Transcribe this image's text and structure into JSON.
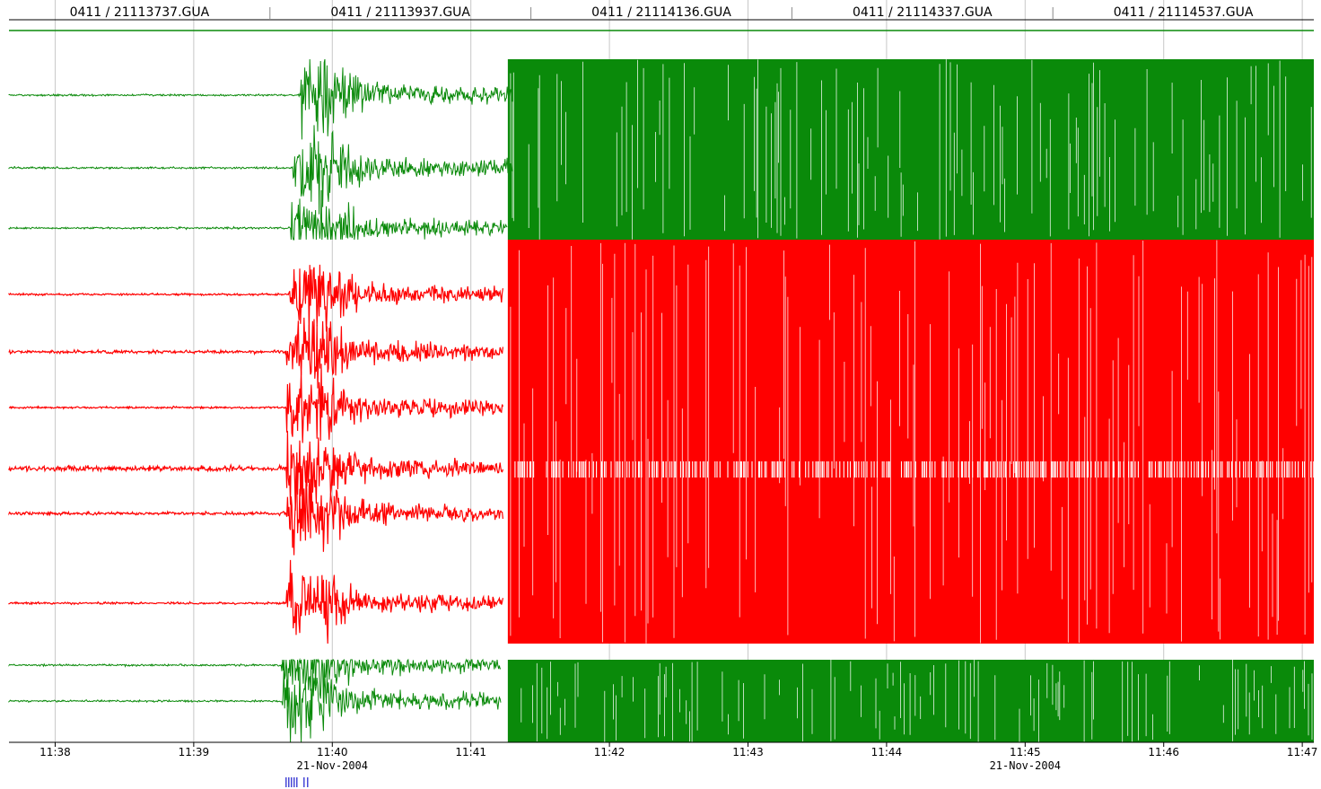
{
  "chart_data": {
    "type": "line",
    "title": "",
    "xlabel": "",
    "ylabel": "",
    "file_labels": [
      "0411 / 21113737.GUA",
      "0411 / 21113937.GUA",
      "0411 / 21114136.GUA",
      "0411 / 21114337.GUA",
      "0411 / 21114537.GUA"
    ],
    "x_ticks": [
      "11:38",
      "11:39",
      "11:40",
      "11:41",
      "11:42",
      "11:43",
      "11:44",
      "11:45",
      "11:46",
      "11:47"
    ],
    "dates": [
      {
        "at": "11:40",
        "text": "21-Nov-2004"
      },
      {
        "at": "11:45",
        "text": "21-Nov-2004"
      }
    ],
    "xlim": [
      "11:37:40",
      "11:47:05"
    ],
    "event_onset": "11:39:40",
    "saturation_onset": "11:41:16",
    "grid": true,
    "colors": {
      "green": "#0a8a0a",
      "red": "#ff0000",
      "grid": "#c8c8c8",
      "event_marks": "#1a1acc"
    },
    "series": [
      {
        "color": "green",
        "group": "top",
        "amplitude": "low",
        "onset": "11:39:46",
        "saturated_from": "11:41:18"
      },
      {
        "color": "green",
        "group": "top",
        "amplitude": "low",
        "onset": "11:39:43",
        "saturated_from": "11:41:18"
      },
      {
        "color": "green",
        "group": "top",
        "amplitude": "low",
        "onset": "11:39:42",
        "saturated_from": "11:41:16"
      },
      {
        "color": "red",
        "group": "middle",
        "amplitude": "low",
        "onset": "11:39:41",
        "saturated_from": "11:41:14"
      },
      {
        "color": "red",
        "group": "middle",
        "amplitude": "medium",
        "onset": "11:39:40",
        "saturated_from": "11:41:14"
      },
      {
        "color": "red",
        "group": "middle",
        "amplitude": "low",
        "onset": "11:39:40",
        "saturated_from": "11:41:14"
      },
      {
        "color": "red",
        "group": "middle",
        "amplitude": "high",
        "onset": "11:39:40",
        "saturated_from": "11:41:14"
      },
      {
        "color": "red",
        "group": "middle",
        "amplitude": "medium",
        "onset": "11:39:40",
        "saturated_from": "11:41:14"
      },
      {
        "color": "red",
        "group": "middle",
        "amplitude": "low",
        "onset": "11:39:40",
        "saturated_from": "11:41:14"
      },
      {
        "color": "green",
        "group": "bottom",
        "amplitude": "low",
        "onset": "11:39:38",
        "saturated_from": "11:41:13"
      },
      {
        "color": "green",
        "group": "bottom",
        "amplitude": "low",
        "onset": "11:39:38",
        "saturated_from": "11:41:13"
      }
    ]
  }
}
